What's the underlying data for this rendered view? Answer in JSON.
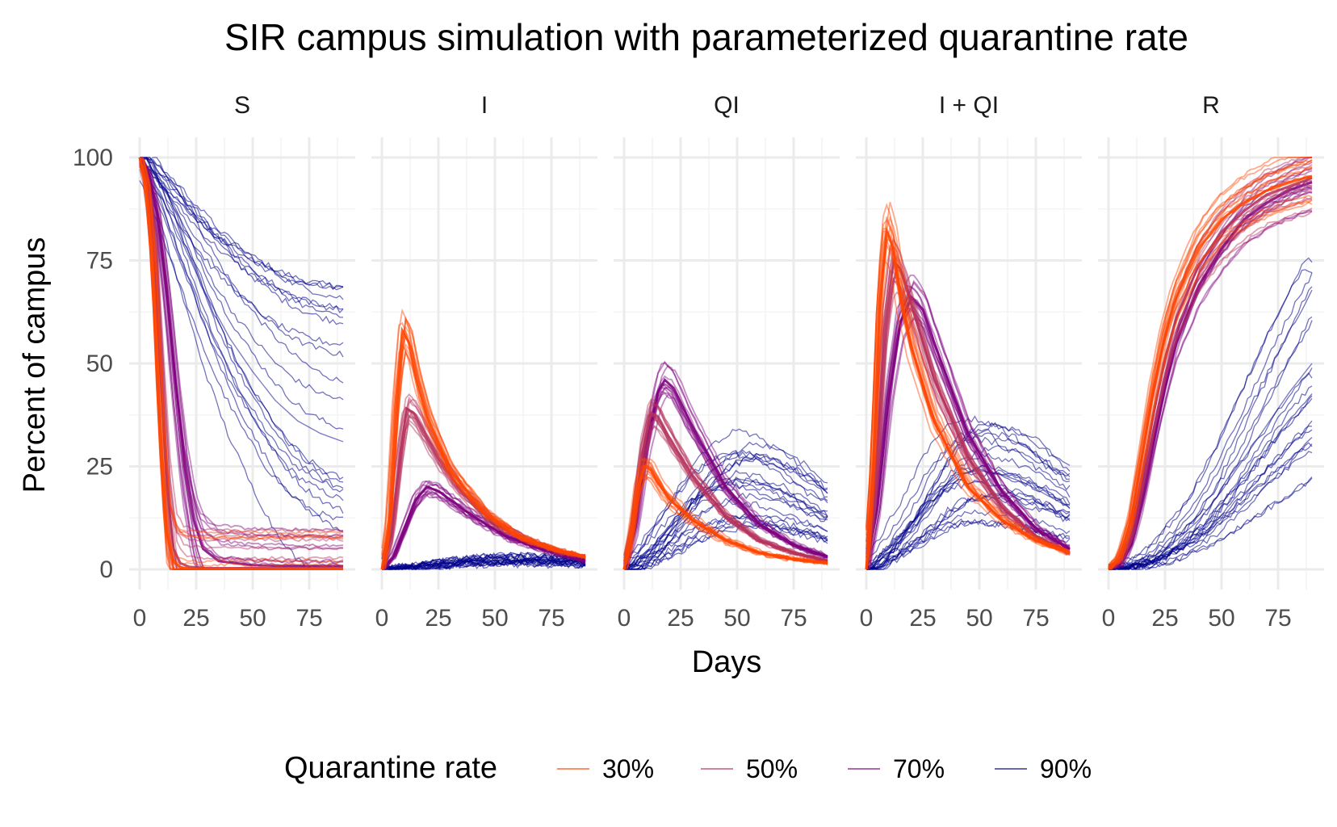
{
  "chart_data": {
    "type": "line",
    "title": "SIR campus simulation with parameterized quarantine rate",
    "xlabel": "Days",
    "ylabel": "Percent of campus",
    "xlim": [
      0,
      90
    ],
    "ylim": [
      0,
      100
    ],
    "x_ticks": [
      0,
      25,
      50,
      75
    ],
    "y_ticks": [
      0,
      25,
      50,
      75,
      100
    ],
    "x_tick_labels": [
      "0",
      "25",
      "50",
      "75"
    ],
    "y_tick_labels": [
      "0",
      "25",
      "50",
      "75",
      "100"
    ],
    "grid": true,
    "legend": {
      "title": "Quarantine rate",
      "position": "bottom",
      "entries": [
        {
          "label": "30%",
          "color": "#ff4500"
        },
        {
          "label": "50%",
          "color": "#b5305c"
        },
        {
          "label": "70%",
          "color": "#7f007f"
        },
        {
          "label": "90%",
          "color": "#00008b"
        }
      ]
    },
    "panels": [
      {
        "name": "S",
        "series": [
          {
            "quarantine": "30%",
            "color": "#ff4500",
            "x": [
              0,
              3,
              6,
              9,
              12,
              15,
              18,
              22,
              30,
              45,
              60,
              75,
              90
            ],
            "y": [
              100,
              93,
              72,
              35,
              9,
              2,
              0.5,
              0.2,
              0.1,
              0.1,
              0.1,
              0.1,
              0.1
            ]
          },
          {
            "quarantine": "50%",
            "color": "#b5305c",
            "x": [
              0,
              3,
              6,
              9,
              12,
              15,
              18,
              22,
              30,
              45,
              60,
              75,
              90
            ],
            "y": [
              100,
              94,
              80,
              50,
              20,
              5,
              1.5,
              0.6,
              0.3,
              0.3,
              0.3,
              0.3,
              0.3
            ]
          },
          {
            "quarantine": "70%",
            "color": "#7f007f",
            "x": [
              0,
              4,
              8,
              12,
              16,
              20,
              24,
              28,
              35,
              50,
              65,
              80,
              90
            ],
            "y": [
              100,
              96,
              86,
              68,
              45,
              25,
              12,
              5,
              2,
              1,
              0.8,
              0.8,
              0.8
            ]
          },
          {
            "quarantine": "90%",
            "color": "#00008b",
            "x": [
              0,
              10,
              20,
              30,
              40,
              50,
              60,
              70,
              80,
              90
            ],
            "y": [
              100,
              90,
              78,
              66,
              56,
              48,
              41,
              36,
              33,
              31
            ]
          }
        ]
      },
      {
        "name": "I",
        "series": [
          {
            "quarantine": "30%",
            "color": "#ff4500",
            "x": [
              0,
              3,
              6,
              9,
              12,
              15,
              20,
              30,
              45,
              60,
              75,
              90
            ],
            "y": [
              0,
              12,
              40,
              58,
              55,
              47,
              37,
              24,
              14,
              8,
              5,
              3
            ]
          },
          {
            "quarantine": "50%",
            "color": "#b5305c",
            "x": [
              0,
              4,
              8,
              11,
              14,
              18,
              25,
              35,
              50,
              65,
              80,
              90
            ],
            "y": [
              0,
              8,
              28,
              39,
              38,
              34,
              27,
              19,
              11,
              7,
              4,
              3
            ]
          },
          {
            "quarantine": "70%",
            "color": "#7f007f",
            "x": [
              0,
              5,
              10,
              15,
              20,
              25,
              30,
              40,
              55,
              70,
              90
            ],
            "y": [
              0,
              3,
              10,
              17,
              20,
              19,
              17,
              13,
              8,
              5,
              2
            ]
          },
          {
            "quarantine": "90%",
            "color": "#00008b",
            "x": [
              0,
              10,
              20,
              30,
              40,
              50,
              60,
              70,
              80,
              90
            ],
            "y": [
              0,
              0.5,
              1,
              1.5,
              2,
              2.2,
              2.3,
              2.2,
              2,
              1.8
            ]
          }
        ]
      },
      {
        "name": "QI",
        "series": [
          {
            "quarantine": "30%",
            "color": "#ff4500",
            "x": [
              0,
              3,
              6,
              9,
              12,
              15,
              20,
              30,
              45,
              60,
              75,
              90
            ],
            "y": [
              0,
              8,
              20,
              25,
              24,
              21,
              17,
              12,
              7,
              4,
              2.5,
              1.5
            ]
          },
          {
            "quarantine": "50%",
            "color": "#b5305c",
            "x": [
              0,
              4,
              8,
              12,
              15,
              20,
              30,
              45,
              60,
              75,
              90
            ],
            "y": [
              0,
              10,
              28,
              38,
              37,
              32,
              23,
              13,
              7,
              4,
              2
            ]
          },
          {
            "quarantine": "70%",
            "color": "#7f007f",
            "x": [
              0,
              5,
              10,
              15,
              18,
              22,
              30,
              45,
              60,
              75,
              90
            ],
            "y": [
              0,
              10,
              30,
              43,
              46,
              44,
              35,
              20,
              11,
              6,
              3
            ]
          },
          {
            "quarantine": "90%",
            "color": "#00008b",
            "x": [
              0,
              10,
              20,
              30,
              40,
              50,
              60,
              70,
              80,
              90
            ],
            "y": [
              0,
              4,
              10,
              16,
              20,
              22,
              21,
              19,
              16,
              13
            ]
          }
        ]
      },
      {
        "name": "I + QI",
        "series": [
          {
            "quarantine": "30%",
            "color": "#ff4500",
            "x": [
              0,
              3,
              6,
              9,
              12,
              15,
              20,
              30,
              45,
              60,
              75,
              90
            ],
            "y": [
              0,
              25,
              65,
              82,
              78,
              67,
              54,
              36,
              20,
              12,
              7,
              4
            ]
          },
          {
            "quarantine": "50%",
            "color": "#b5305c",
            "x": [
              0,
              4,
              8,
              12,
              15,
              20,
              30,
              45,
              60,
              75,
              90
            ],
            "y": [
              0,
              22,
              58,
              75,
              73,
              64,
              46,
              27,
              15,
              8,
              4
            ]
          },
          {
            "quarantine": "70%",
            "color": "#7f007f",
            "x": [
              0,
              5,
              10,
              15,
              20,
              25,
              30,
              45,
              60,
              75,
              90
            ],
            "y": [
              0,
              15,
              42,
              60,
              66,
              63,
              55,
              33,
              19,
              10,
              5
            ]
          },
          {
            "quarantine": "90%",
            "color": "#00008b",
            "x": [
              0,
              10,
              20,
              30,
              40,
              50,
              60,
              70,
              80,
              90
            ],
            "y": [
              0,
              5,
              11,
              18,
              23,
              24,
              23,
              21,
              18,
              15
            ]
          }
        ]
      },
      {
        "name": "R",
        "series": [
          {
            "quarantine": "30%",
            "color": "#ff4500",
            "x": [
              0,
              5,
              10,
              15,
              20,
              25,
              30,
              40,
              50,
              60,
              70,
              80,
              90
            ],
            "y": [
              0,
              3,
              12,
              28,
              44,
              57,
              66,
              78,
              85,
              89,
              92,
              94,
              95.5
            ]
          },
          {
            "quarantine": "50%",
            "color": "#b5305c",
            "x": [
              0,
              5,
              10,
              15,
              20,
              25,
              30,
              40,
              50,
              60,
              70,
              80,
              90
            ],
            "y": [
              0,
              2,
              9,
              23,
              38,
              51,
              61,
              74,
              82,
              87,
              91,
              93,
              95
            ]
          },
          {
            "quarantine": "70%",
            "color": "#7f007f",
            "x": [
              0,
              5,
              10,
              15,
              20,
              25,
              30,
              40,
              50,
              60,
              70,
              80,
              90
            ],
            "y": [
              0,
              1,
              6,
              17,
              31,
              44,
              55,
              69,
              78,
              85,
              89,
              92,
              94
            ]
          },
          {
            "quarantine": "90%",
            "color": "#00008b",
            "x": [
              0,
              10,
              20,
              30,
              40,
              50,
              60,
              70,
              80,
              90
            ],
            "y": [
              0,
              1,
              3,
              7,
              12,
              19,
              27,
              35,
              43,
              50
            ]
          }
        ]
      }
    ]
  }
}
